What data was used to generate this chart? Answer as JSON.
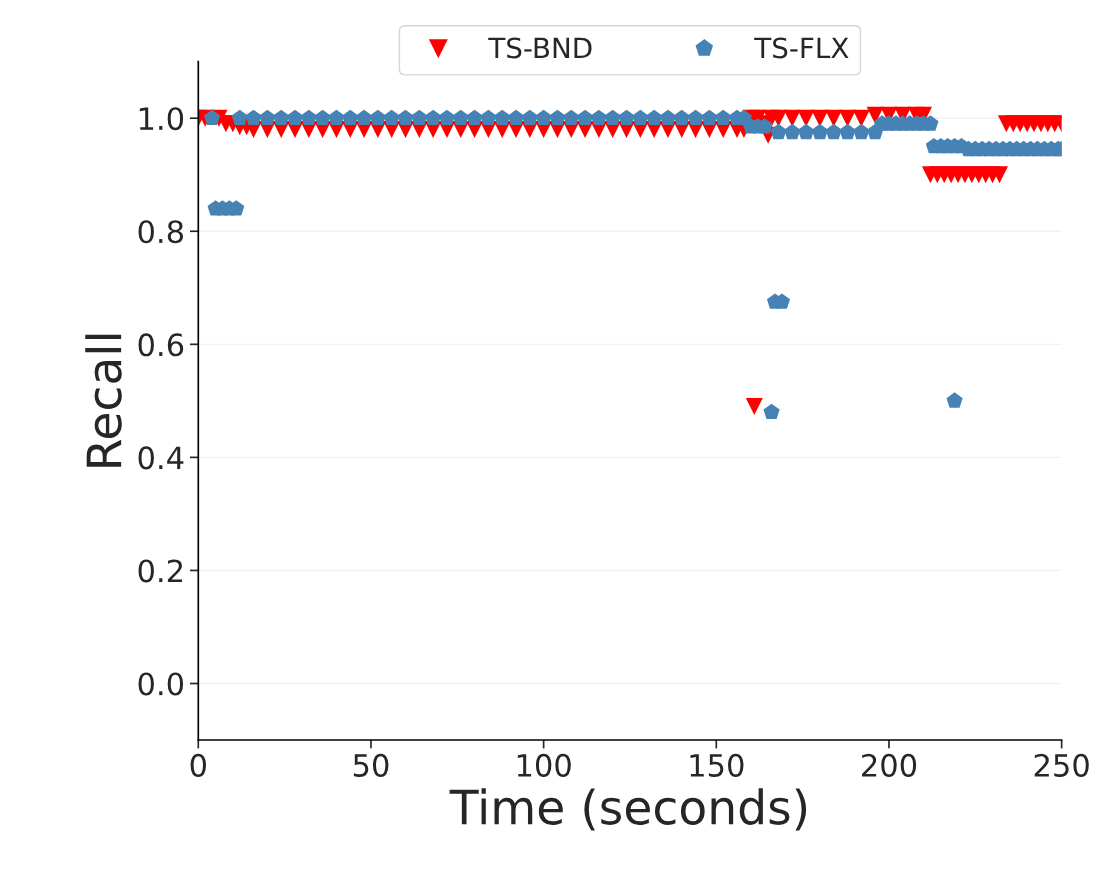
{
  "chart_data": {
    "type": "scatter",
    "xlabel": "Time (seconds)",
    "ylabel": "Recall",
    "xlim": [
      0,
      250
    ],
    "xticks": [
      0,
      50,
      100,
      150,
      200,
      250
    ],
    "ylim": [
      -0.1,
      1.1
    ],
    "yticks": [
      {
        "value": 0,
        "label": "0.0"
      },
      {
        "value": 0.2,
        "label": "0.2"
      },
      {
        "value": 0.4,
        "label": "0.4"
      },
      {
        "value": 0.6,
        "label": "0.6"
      },
      {
        "value": 0.8,
        "label": "0.8"
      },
      {
        "value": 1.0,
        "label": "1.0"
      }
    ],
    "grid": "y",
    "legend": "top",
    "series": [
      {
        "name": "TS-BND",
        "color": "#ff0000",
        "marker": "triangle",
        "x": [
          0,
          2,
          6,
          8,
          10,
          12,
          14,
          16,
          20,
          24,
          28,
          32,
          36,
          40,
          44,
          48,
          52,
          56,
          60,
          64,
          68,
          72,
          76,
          80,
          84,
          88,
          92,
          96,
          100,
          104,
          108,
          112,
          116,
          120,
          124,
          128,
          132,
          136,
          140,
          144,
          148,
          152,
          156,
          158,
          160,
          161,
          162,
          164,
          165,
          166,
          168,
          172,
          176,
          180,
          184,
          188,
          192,
          196,
          200,
          204,
          208,
          210,
          212,
          214,
          216,
          218,
          220,
          222,
          224,
          226,
          228,
          230,
          232,
          234,
          236,
          238,
          240,
          242,
          244,
          246,
          248,
          250
        ],
        "values": [
          1.0,
          1.0,
          1.0,
          0.99,
          0.99,
          0.985,
          0.985,
          0.98,
          0.98,
          0.98,
          0.98,
          0.98,
          0.98,
          0.98,
          0.98,
          0.98,
          0.98,
          0.98,
          0.98,
          0.98,
          0.98,
          0.98,
          0.98,
          0.98,
          0.98,
          0.98,
          0.98,
          0.98,
          0.98,
          0.98,
          0.98,
          0.98,
          0.98,
          0.98,
          0.98,
          0.98,
          0.98,
          0.98,
          0.98,
          0.98,
          0.98,
          0.98,
          0.98,
          0.98,
          1.0,
          0.49,
          1.0,
          0.99,
          0.97,
          1.0,
          1.0,
          1.0,
          1.0,
          1.0,
          1.0,
          1.0,
          1.0,
          1.005,
          1.005,
          1.005,
          1.005,
          1.005,
          0.9,
          0.9,
          0.9,
          0.9,
          0.9,
          0.9,
          0.9,
          0.9,
          0.9,
          0.9,
          0.9,
          0.99,
          0.99,
          0.99,
          0.99,
          0.99,
          0.99,
          0.99,
          0.99,
          0.99
        ]
      },
      {
        "name": "TS-FLX",
        "color": "#4682b4",
        "marker": "circle",
        "x": [
          4,
          5,
          7,
          9,
          11,
          12,
          16,
          20,
          24,
          28,
          32,
          36,
          40,
          44,
          48,
          52,
          56,
          60,
          64,
          68,
          72,
          76,
          80,
          84,
          88,
          92,
          96,
          100,
          104,
          108,
          112,
          116,
          120,
          124,
          128,
          132,
          136,
          140,
          144,
          148,
          152,
          156,
          158,
          160,
          162,
          164,
          166,
          167,
          169,
          168,
          172,
          176,
          180,
          184,
          188,
          192,
          196,
          198,
          200,
          202,
          204,
          206,
          208,
          210,
          212,
          213,
          215,
          217,
          219,
          221,
          219,
          223,
          225,
          227,
          229,
          231,
          233,
          235,
          237,
          239,
          241,
          243,
          245,
          247,
          249,
          250
        ],
        "values": [
          1.0,
          0.84,
          0.84,
          0.84,
          0.84,
          1.0,
          1.0,
          1.0,
          1.0,
          1.0,
          1.0,
          1.0,
          1.0,
          1.0,
          1.0,
          1.0,
          1.0,
          1.0,
          1.0,
          1.0,
          1.0,
          1.0,
          1.0,
          1.0,
          1.0,
          1.0,
          1.0,
          1.0,
          1.0,
          1.0,
          1.0,
          1.0,
          1.0,
          1.0,
          1.0,
          1.0,
          1.0,
          1.0,
          1.0,
          1.0,
          1.0,
          1.0,
          1.0,
          0.985,
          0.985,
          0.985,
          0.48,
          0.675,
          0.675,
          0.975,
          0.975,
          0.975,
          0.975,
          0.975,
          0.975,
          0.975,
          0.975,
          0.99,
          0.99,
          0.99,
          0.99,
          0.99,
          0.99,
          0.99,
          0.99,
          0.95,
          0.95,
          0.95,
          0.95,
          0.95,
          0.5,
          0.945,
          0.945,
          0.945,
          0.945,
          0.945,
          0.945,
          0.945,
          0.945,
          0.945,
          0.945,
          0.945,
          0.945,
          0.945,
          0.945,
          0.945
        ]
      }
    ]
  }
}
